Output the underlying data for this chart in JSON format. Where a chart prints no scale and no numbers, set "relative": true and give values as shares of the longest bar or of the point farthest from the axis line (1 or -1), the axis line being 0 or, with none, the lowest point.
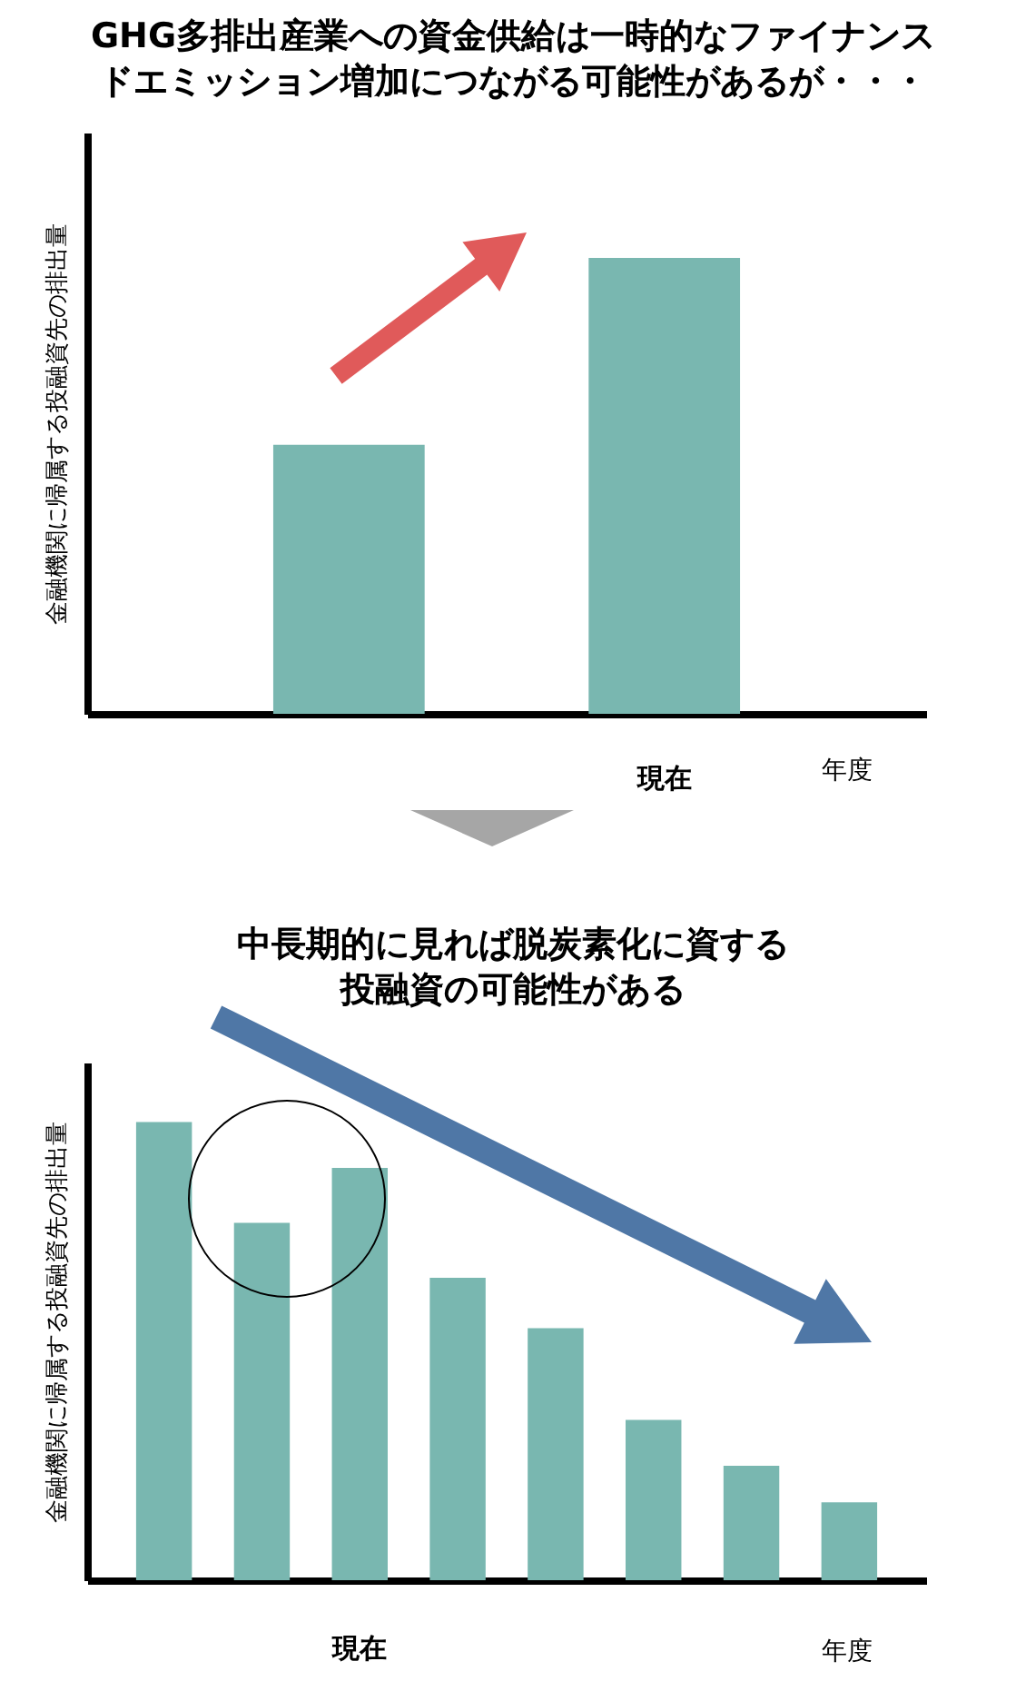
{
  "chart_data": [
    {
      "type": "bar",
      "title": "GHG多排出産業への資金供給は一時的なファイナンスドエミッション増加につながる可能性があるが・・・",
      "ylabel": "金融機関に帰属する投融資先の排出量",
      "xlabel": "年度",
      "relative": true,
      "categories": [
        null,
        "現在"
      ],
      "values": [
        0.59,
        1
      ],
      "color": "#79b7b0"
    },
    {
      "type": "bar",
      "title": "中長期的に見れば脱炭素化に資する投融資の可能性がある",
      "ylabel": "金融機関に帰属する投融資先の排出量",
      "xlabel": "年度",
      "relative": true,
      "categories": [
        null,
        null,
        "現在",
        null,
        null,
        null,
        null,
        null
      ],
      "values": [
        1,
        0.78,
        0.9,
        0.66,
        0.55,
        0.35,
        0.25,
        0.17
      ],
      "color": "#79b7b0"
    }
  ]
}
